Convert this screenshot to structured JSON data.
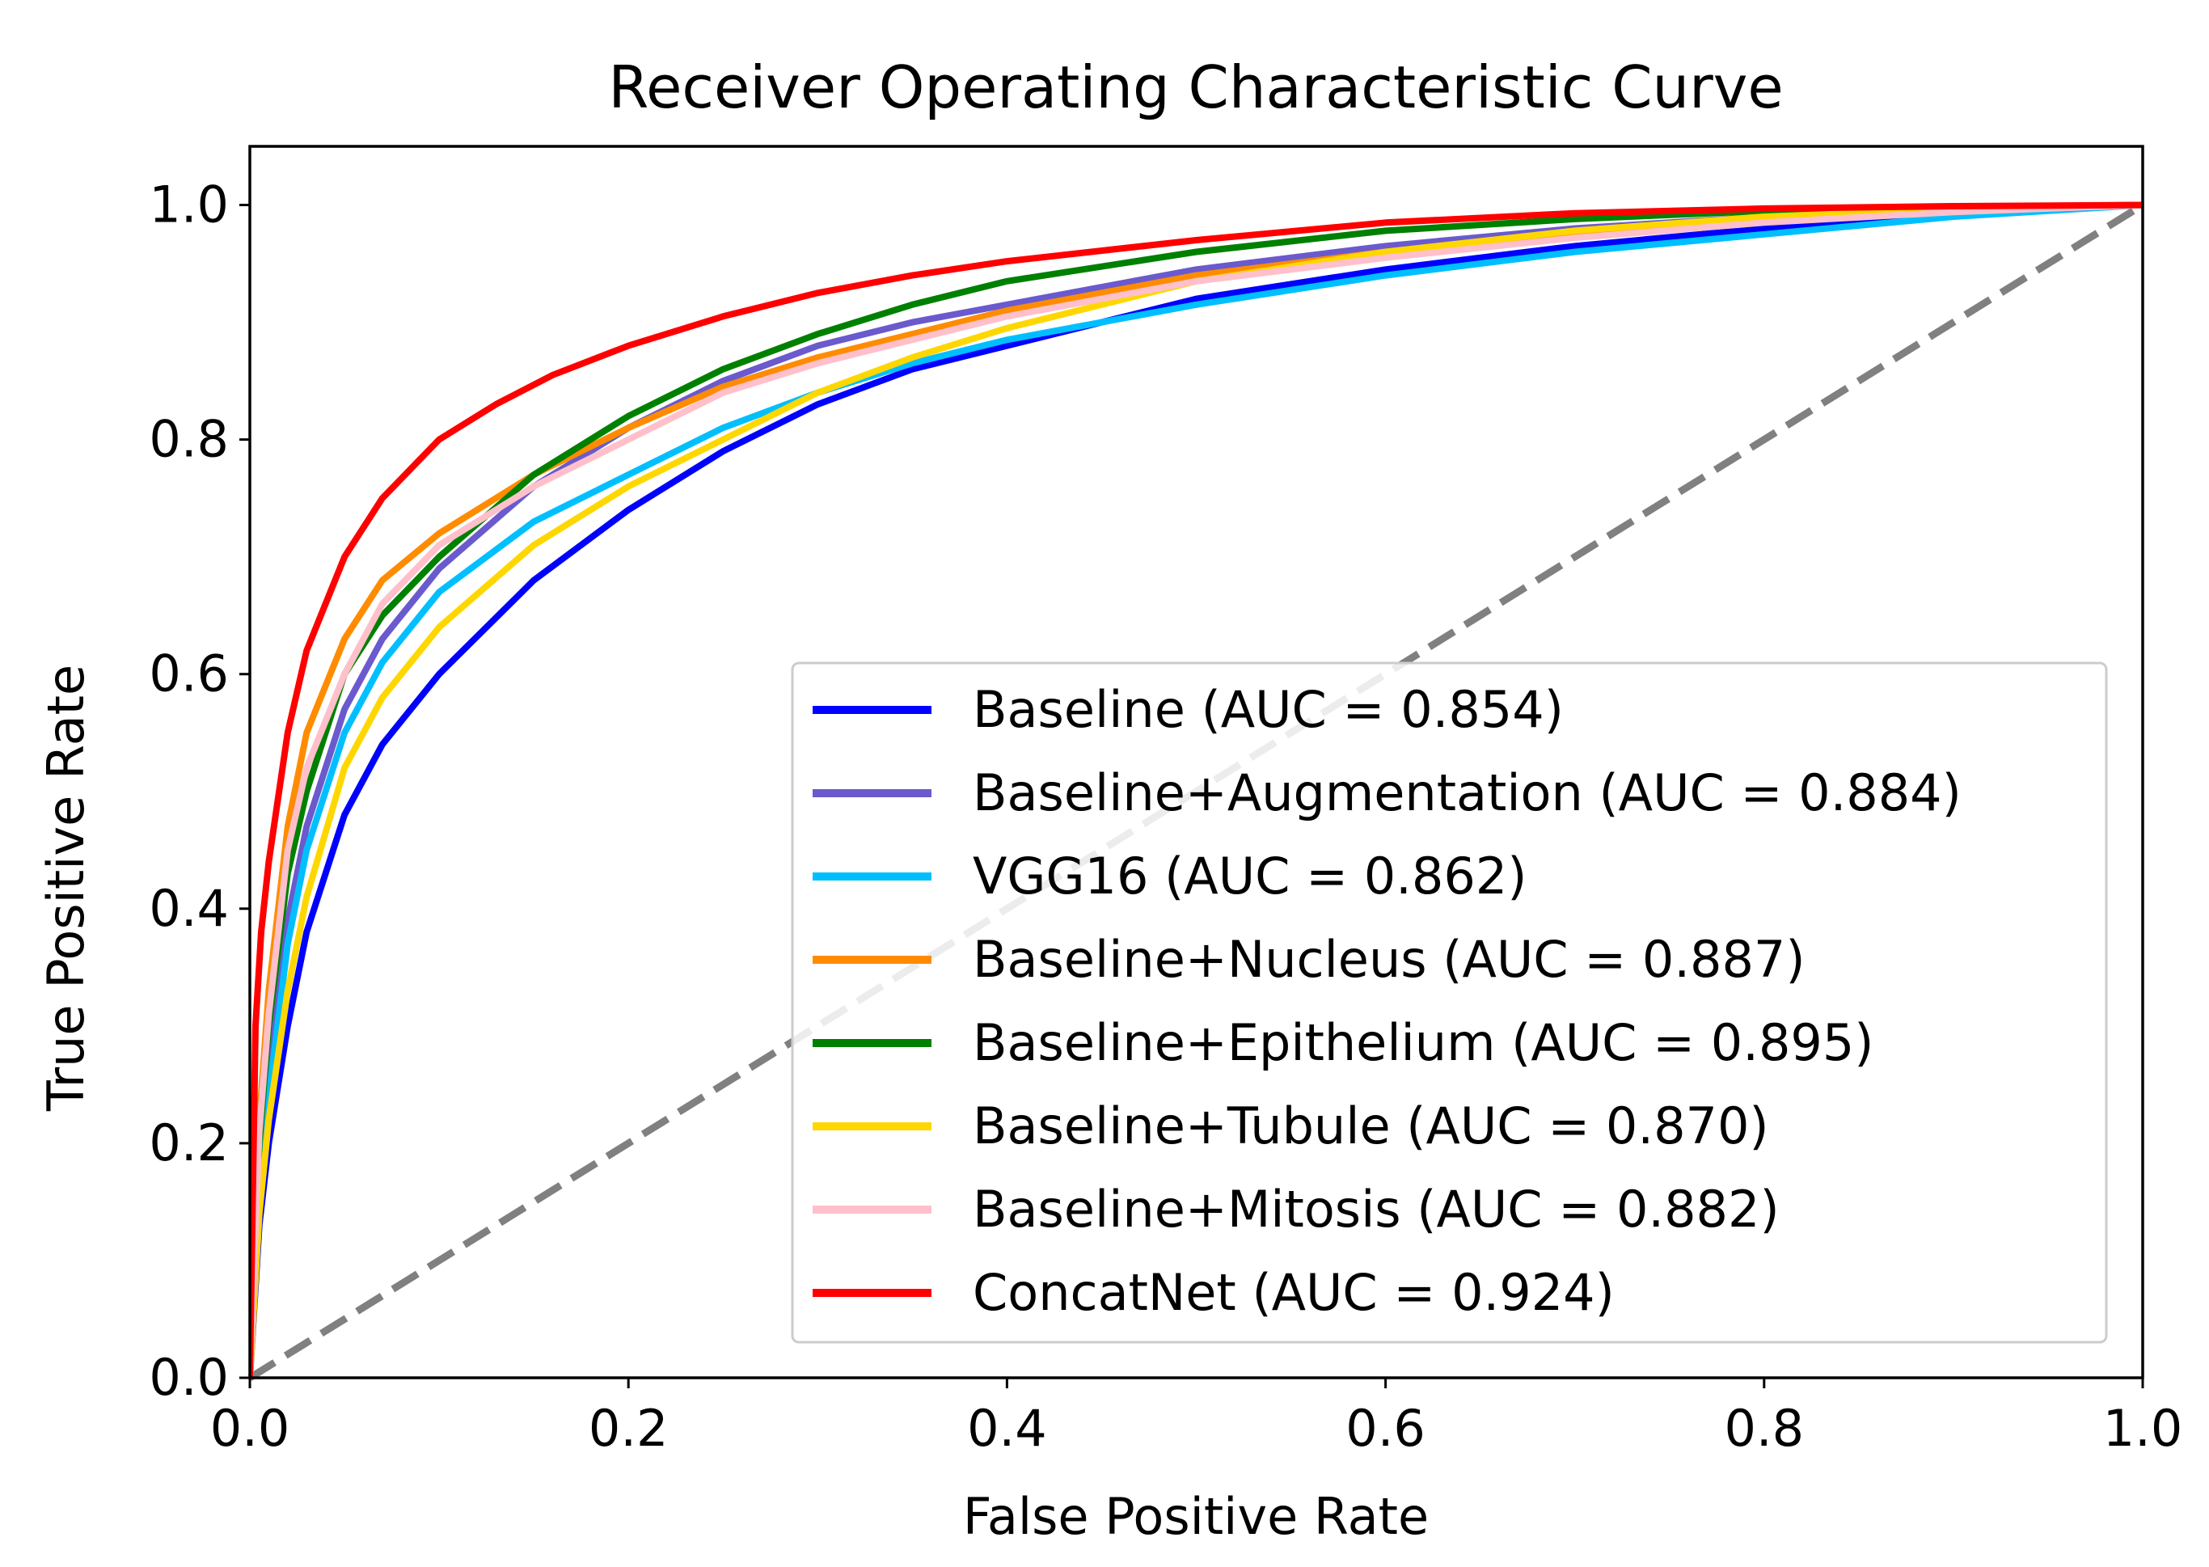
{
  "chart_data": {
    "type": "line",
    "title": "Receiver Operating Characteristic Curve",
    "xlabel": "False Positive Rate",
    "ylabel": "True Positive Rate",
    "xlim": [
      0.0,
      1.0
    ],
    "ylim": [
      0.0,
      1.05
    ],
    "xticks": [
      "0.0",
      "0.2",
      "0.4",
      "0.6",
      "0.8",
      "1.0"
    ],
    "yticks": [
      "0.0",
      "0.2",
      "0.4",
      "0.6",
      "0.8",
      "1.0"
    ],
    "grid": false,
    "legend_position": "lower-right",
    "reference_line": {
      "x": [
        0,
        1
      ],
      "y": [
        0,
        1
      ],
      "style": "dashed",
      "color": "#808080"
    },
    "series": [
      {
        "name": "Baseline (AUC = 0.854)",
        "color": "#0000ff",
        "x": [
          0,
          0.005,
          0.01,
          0.02,
          0.03,
          0.05,
          0.07,
          0.1,
          0.15,
          0.2,
          0.25,
          0.3,
          0.35,
          0.4,
          0.5,
          0.6,
          0.7,
          0.8,
          0.9,
          1.0
        ],
        "y": [
          0,
          0.13,
          0.2,
          0.3,
          0.38,
          0.48,
          0.54,
          0.6,
          0.68,
          0.74,
          0.79,
          0.83,
          0.86,
          0.88,
          0.92,
          0.945,
          0.965,
          0.98,
          0.993,
          1.0
        ]
      },
      {
        "name": "Baseline+Augmentation (AUC = 0.884)",
        "color": "#6a5acd",
        "x": [
          0,
          0.005,
          0.01,
          0.02,
          0.03,
          0.05,
          0.07,
          0.1,
          0.15,
          0.2,
          0.25,
          0.3,
          0.35,
          0.4,
          0.5,
          0.6,
          0.7,
          0.8,
          0.9,
          1.0
        ],
        "y": [
          0,
          0.18,
          0.27,
          0.39,
          0.47,
          0.57,
          0.63,
          0.69,
          0.76,
          0.81,
          0.85,
          0.88,
          0.9,
          0.915,
          0.945,
          0.965,
          0.98,
          0.99,
          0.996,
          1.0
        ]
      },
      {
        "name": "VGG16 (AUC = 0.862)",
        "color": "#00bfff",
        "x": [
          0,
          0.005,
          0.01,
          0.02,
          0.03,
          0.05,
          0.07,
          0.1,
          0.15,
          0.2,
          0.25,
          0.3,
          0.35,
          0.4,
          0.5,
          0.6,
          0.7,
          0.8,
          0.9,
          1.0
        ],
        "y": [
          0,
          0.15,
          0.24,
          0.37,
          0.45,
          0.55,
          0.61,
          0.67,
          0.73,
          0.77,
          0.81,
          0.84,
          0.865,
          0.885,
          0.915,
          0.94,
          0.96,
          0.975,
          0.99,
          1.0
        ]
      },
      {
        "name": "Baseline+Nucleus (AUC = 0.887)",
        "color": "#ff8c00",
        "x": [
          0,
          0.005,
          0.01,
          0.02,
          0.03,
          0.05,
          0.07,
          0.1,
          0.15,
          0.2,
          0.25,
          0.3,
          0.35,
          0.4,
          0.5,
          0.6,
          0.7,
          0.8,
          0.9,
          1.0
        ],
        "y": [
          0,
          0.22,
          0.33,
          0.47,
          0.55,
          0.63,
          0.68,
          0.72,
          0.77,
          0.81,
          0.845,
          0.87,
          0.89,
          0.91,
          0.94,
          0.96,
          0.975,
          0.988,
          0.996,
          1.0
        ]
      },
      {
        "name": "Baseline+Epithelium (AUC = 0.895)",
        "color": "#008000",
        "x": [
          0,
          0.005,
          0.01,
          0.02,
          0.03,
          0.05,
          0.07,
          0.1,
          0.15,
          0.2,
          0.25,
          0.3,
          0.35,
          0.4,
          0.5,
          0.6,
          0.7,
          0.8,
          0.9,
          1.0
        ],
        "y": [
          0,
          0.2,
          0.3,
          0.43,
          0.5,
          0.6,
          0.65,
          0.7,
          0.77,
          0.82,
          0.86,
          0.89,
          0.915,
          0.935,
          0.96,
          0.978,
          0.988,
          0.995,
          0.998,
          1.0
        ]
      },
      {
        "name": "Baseline+Tubule (AUC = 0.870)",
        "color": "#ffd700",
        "x": [
          0,
          0.005,
          0.01,
          0.02,
          0.03,
          0.05,
          0.07,
          0.1,
          0.15,
          0.2,
          0.25,
          0.3,
          0.35,
          0.4,
          0.5,
          0.6,
          0.7,
          0.8,
          0.9,
          1.0
        ],
        "y": [
          0,
          0.14,
          0.22,
          0.33,
          0.41,
          0.52,
          0.58,
          0.64,
          0.71,
          0.76,
          0.8,
          0.84,
          0.87,
          0.895,
          0.935,
          0.96,
          0.978,
          0.99,
          0.996,
          1.0
        ]
      },
      {
        "name": "Baseline+Mitosis (AUC = 0.882)",
        "color": "#ffc0cb",
        "x": [
          0,
          0.005,
          0.01,
          0.02,
          0.03,
          0.05,
          0.07,
          0.1,
          0.15,
          0.2,
          0.25,
          0.3,
          0.35,
          0.4,
          0.5,
          0.6,
          0.7,
          0.8,
          0.9,
          1.0
        ],
        "y": [
          0,
          0.21,
          0.31,
          0.45,
          0.52,
          0.6,
          0.66,
          0.71,
          0.76,
          0.8,
          0.84,
          0.865,
          0.885,
          0.905,
          0.935,
          0.955,
          0.972,
          0.985,
          0.994,
          1.0
        ]
      },
      {
        "name": "ConcatNet (AUC = 0.924)",
        "color": "#ff0000",
        "x": [
          0,
          0.003,
          0.006,
          0.01,
          0.02,
          0.03,
          0.05,
          0.07,
          0.1,
          0.13,
          0.16,
          0.2,
          0.25,
          0.3,
          0.35,
          0.4,
          0.5,
          0.6,
          0.7,
          0.8,
          0.9,
          1.0
        ],
        "y": [
          0,
          0.3,
          0.38,
          0.44,
          0.55,
          0.62,
          0.7,
          0.75,
          0.8,
          0.83,
          0.855,
          0.88,
          0.905,
          0.925,
          0.94,
          0.952,
          0.97,
          0.985,
          0.993,
          0.997,
          0.999,
          1.0
        ]
      }
    ]
  }
}
